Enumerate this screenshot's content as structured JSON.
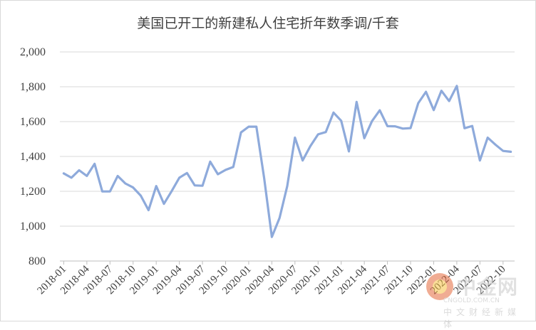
{
  "chart_data": {
    "type": "line",
    "title": "美国已开工的新建私人住宅折年数季调/千套",
    "xlabel": "",
    "ylabel": "",
    "ylim": [
      800,
      2000
    ],
    "yticks": [
      800,
      1000,
      1200,
      1400,
      1600,
      1800,
      2000
    ],
    "ytick_labels": [
      "800",
      "1,000",
      "1,200",
      "1,400",
      "1,600",
      "1,800",
      "2,000"
    ],
    "xtick_labels": [
      "2018-01",
      "2018-04",
      "2018-07",
      "2018-10",
      "2019-01",
      "2019-04",
      "2019-07",
      "2019-10",
      "2020-01",
      "2020-04",
      "2020-07",
      "2020-10",
      "2021-01",
      "2021-04",
      "2021-07",
      "2021-10",
      "2022-01",
      "2022-04",
      "2022-07",
      "2022-10"
    ],
    "grid": true,
    "legend": "none",
    "line_color": "#8eaadb",
    "series": [
      {
        "x": [
          "2018-01",
          "2018-02",
          "2018-03",
          "2018-04",
          "2018-05",
          "2018-06",
          "2018-07",
          "2018-08",
          "2018-09",
          "2018-10",
          "2018-11",
          "2018-12",
          "2019-01",
          "2019-02",
          "2019-03",
          "2019-04",
          "2019-05",
          "2019-06",
          "2019-07",
          "2019-08",
          "2019-09",
          "2019-10",
          "2019-11",
          "2019-12",
          "2020-01",
          "2020-02",
          "2020-03",
          "2020-04",
          "2020-05",
          "2020-06",
          "2020-07",
          "2020-08",
          "2020-09",
          "2020-10",
          "2020-11",
          "2020-12",
          "2021-01",
          "2021-02",
          "2021-03",
          "2021-04",
          "2021-05",
          "2021-06",
          "2021-07",
          "2021-08",
          "2021-09",
          "2021-10",
          "2021-11",
          "2021-12",
          "2022-01",
          "2022-02",
          "2022-03",
          "2022-04",
          "2022-05",
          "2022-06",
          "2022-07",
          "2022-08",
          "2022-09",
          "2022-10",
          "2022-11"
        ],
        "values": [
          1303,
          1278,
          1321,
          1288,
          1358,
          1199,
          1199,
          1288,
          1245,
          1222,
          1175,
          1092,
          1230,
          1128,
          1201,
          1278,
          1305,
          1234,
          1232,
          1370,
          1298,
          1323,
          1340,
          1538,
          1571,
          1571,
          1276,
          938,
          1047,
          1230,
          1508,
          1377,
          1459,
          1527,
          1540,
          1652,
          1605,
          1429,
          1713,
          1505,
          1603,
          1665,
          1574,
          1573,
          1560,
          1563,
          1706,
          1771,
          1666,
          1777,
          1718,
          1805,
          1562,
          1575,
          1377,
          1508,
          1468,
          1432,
          1427
        ]
      }
    ]
  },
  "watermark": {
    "name": "中金网",
    "url": "CNGOLD.COM.CN",
    "slogan": "中文财经新媒体"
  }
}
